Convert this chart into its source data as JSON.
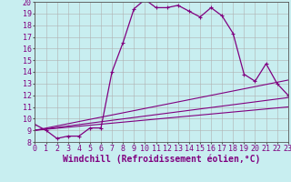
{
  "xlabel": "Windchill (Refroidissement éolien,°C)",
  "bg_color": "#c8eef0",
  "line_color": "#800080",
  "grid_color": "#b0b0b0",
  "xlim": [
    0,
    23
  ],
  "ylim": [
    8,
    20
  ],
  "xticks": [
    0,
    1,
    2,
    3,
    4,
    5,
    6,
    7,
    8,
    9,
    10,
    11,
    12,
    13,
    14,
    15,
    16,
    17,
    18,
    19,
    20,
    21,
    22,
    23
  ],
  "yticks": [
    8,
    9,
    10,
    11,
    12,
    13,
    14,
    15,
    16,
    17,
    18,
    19,
    20
  ],
  "series_main": {
    "x": [
      0,
      1,
      2,
      3,
      4,
      5,
      6,
      7,
      8,
      9,
      10,
      11,
      12,
      13,
      14,
      15,
      16,
      17,
      18,
      19,
      20,
      21,
      22,
      23
    ],
    "y": [
      9.5,
      9.0,
      8.3,
      8.5,
      8.5,
      9.2,
      9.2,
      14.0,
      16.5,
      19.4,
      20.2,
      19.5,
      19.5,
      19.7,
      19.2,
      18.7,
      19.5,
      18.8,
      17.3,
      13.8,
      13.2,
      14.7,
      13.0,
      12.0
    ]
  },
  "series_linear": [
    {
      "x": [
        0,
        23
      ],
      "y": [
        9.0,
        13.3
      ]
    },
    {
      "x": [
        0,
        23
      ],
      "y": [
        9.0,
        11.8
      ]
    },
    {
      "x": [
        0,
        23
      ],
      "y": [
        9.0,
        11.0
      ]
    }
  ],
  "font_family": "monospace",
  "tick_fontsize": 6.0,
  "xlabel_fontsize": 7.0
}
